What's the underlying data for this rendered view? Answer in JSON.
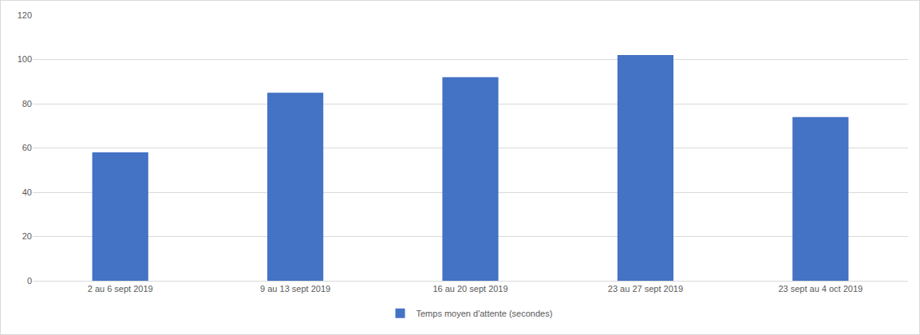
{
  "chart_data": {
    "type": "bar",
    "categories": [
      "2 au 6 sept 2019",
      "9 au 13 sept 2019",
      "16 au 20 sept 2019",
      "23 au 27 sept 2019",
      "23 sept au 4 oct 2019"
    ],
    "series": [
      {
        "name": "Temps moyen d'attente (secondes)",
        "color": "#4472c4",
        "values": [
          58,
          85,
          92,
          102,
          74
        ]
      }
    ],
    "ylim": [
      0,
      120
    ],
    "yticks": [
      0,
      20,
      40,
      60,
      80,
      100,
      120
    ],
    "grid": true,
    "legend": "bottom"
  }
}
